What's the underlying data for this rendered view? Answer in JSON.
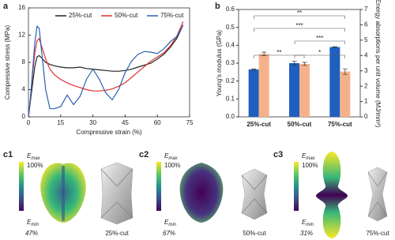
{
  "chart_data": [
    {
      "type": "line",
      "panel_label": "a",
      "x_label": "Compressive strain (%)",
      "y_label": "Compressive stress (MPa)",
      "x": [
        0,
        1,
        2,
        3,
        4,
        5,
        6,
        8,
        10,
        12,
        15,
        18,
        21,
        24,
        27,
        30,
        33,
        36,
        39,
        42,
        45,
        48,
        51,
        54,
        57,
        60,
        63,
        66,
        69,
        72
      ],
      "series": [
        {
          "name": "25%-cut",
          "color": "#222222",
          "values": [
            0,
            2.5,
            5,
            7.5,
            8.8,
            9,
            8.7,
            8,
            7.7,
            7.5,
            7.3,
            7.2,
            7.2,
            7.3,
            7.1,
            7,
            6.9,
            6.8,
            6.7,
            6.7,
            6.8,
            7,
            7.3,
            7.6,
            7.9,
            8.5,
            9.2,
            10.2,
            11.5,
            13.5
          ]
        },
        {
          "name": "50%-cut",
          "color": "#e03030",
          "values": [
            0,
            3,
            6.5,
            9.5,
            11.2,
            11.5,
            10.5,
            8.5,
            7,
            6.2,
            5.5,
            5,
            4.6,
            4.3,
            4,
            3.8,
            3.8,
            3.9,
            4.1,
            4.5,
            5,
            5.8,
            6.6,
            7.4,
            8.2,
            8.8,
            9.4,
            10.4,
            11.8,
            14
          ]
        },
        {
          "name": "75%-cut",
          "color": "#2f5fb0",
          "values": [
            0,
            3,
            7,
            11,
            13.3,
            13,
            10,
            4,
            1.2,
            1.2,
            1.5,
            3.2,
            1.8,
            3,
            5.5,
            7,
            5.5,
            3.5,
            2.5,
            4,
            6.5,
            8.2,
            9.2,
            9.6,
            9.5,
            9.3,
            10,
            11,
            11.8,
            13.5
          ]
        }
      ],
      "xlim": [
        0,
        75
      ],
      "xticks": [
        0,
        15,
        30,
        45,
        60,
        75
      ],
      "ylim": [
        0,
        16
      ],
      "yticks": [
        0,
        4,
        8,
        12,
        16
      ]
    },
    {
      "type": "bar",
      "panel_label": "b",
      "y_label": "Young's modulus (GPa)",
      "y2_label": "Energy absorptions per unit volume (MJ/mm³)",
      "categories": [
        "25%-cut",
        "50%-cut",
        "75%-cut"
      ],
      "series": [
        {
          "name": "Young's modulus",
          "color": "#1f5fbf",
          "values": [
            0.265,
            0.3,
            0.39
          ],
          "errors": [
            0.003,
            0.01,
            0.002
          ]
        },
        {
          "name": "Energy absorption",
          "color": "#f5b28a",
          "axis": "y2",
          "values": [
            4.1,
            3.45,
            2.95
          ],
          "errors": [
            0.12,
            0.1,
            0.18
          ]
        }
      ],
      "ylim": [
        0,
        0.6
      ],
      "yticks": [
        {
          "value": 0,
          "label": "0.0"
        },
        0.1,
        0.2,
        0.3,
        0.4,
        0.5,
        0.6
      ],
      "y2lim": [
        0,
        7
      ],
      "y2ticks": [
        0,
        1,
        2,
        3,
        4,
        5,
        6,
        7
      ],
      "significance": [
        "**",
        "***",
        "***",
        "**",
        "*"
      ]
    }
  ],
  "figures": {
    "symbol": "E",
    "max": "max",
    "min": "min",
    "top": "100%",
    "panels": [
      {
        "label": "c1",
        "bottom": "47%",
        "caption": "25%-cut"
      },
      {
        "label": "c2",
        "bottom": "67%",
        "caption": "50%-cut"
      },
      {
        "label": "c3",
        "bottom": "31%",
        "caption": "75%-cut"
      }
    ]
  }
}
